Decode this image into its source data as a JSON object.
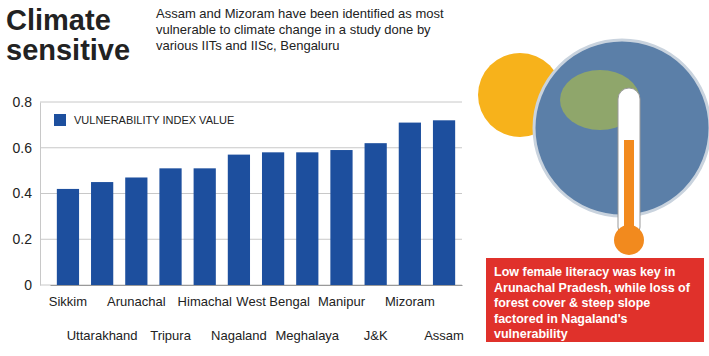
{
  "chart_data": {
    "type": "bar",
    "title": "Climate sensitive",
    "subtitle": "Assam and Mizoram have been identified as most vulnerable to climate change in a study done by various IITs and IISc, Bengaluru",
    "categories": [
      "Sikkim",
      "Uttarakhand",
      "Arunachal",
      "Tripura",
      "Himachal",
      "Nagaland",
      "West Bengal",
      "Meghalaya",
      "Manipur",
      "J&K",
      "Mizoram",
      "Assam"
    ],
    "series": [
      {
        "name": "VULNERABILITY INDEX VALUE",
        "color": "#1d4f9e",
        "values": [
          0.42,
          0.45,
          0.47,
          0.51,
          0.51,
          0.57,
          0.58,
          0.58,
          0.59,
          0.62,
          0.71,
          0.72
        ]
      }
    ],
    "ylim": [
      0,
      0.8
    ],
    "yticks": [
      0,
      0.2,
      0.4,
      0.6,
      0.8
    ],
    "grid": true,
    "legend": "top-left",
    "annotation": "Low female literacy was key in Arunachal Pradesh, while loss of forest cover & steep slope factored in Nagaland's vulnerability"
  }
}
